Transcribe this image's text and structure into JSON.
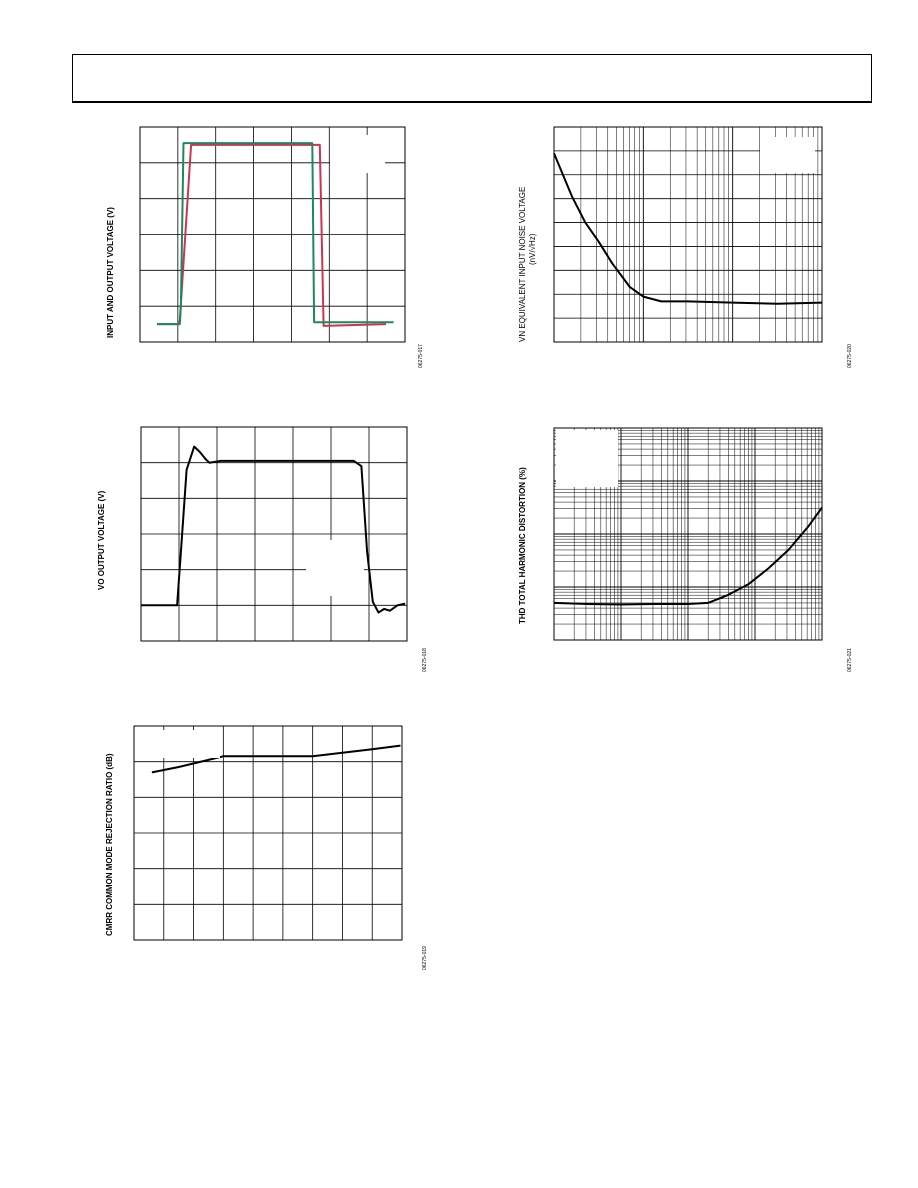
{
  "page": {
    "header_text": ""
  },
  "chart_data": [
    {
      "id": "fig17",
      "type": "line",
      "ylabel": "INPUT AND OUTPUT VOLTAGE (V)",
      "figure_id": "06275-017",
      "grid": true,
      "xgrid": 7,
      "ygrid": 6,
      "xlim": [
        0,
        7
      ],
      "ylim": [
        0,
        6
      ],
      "series": [
        {
          "color": "#cc3355",
          "x": [
            0.45,
            1.0,
            1.05,
            1.35,
            4.5,
            4.75,
            4.85,
            6.5
          ],
          "y": [
            0.5,
            0.5,
            0.6,
            5.5,
            5.5,
            5.5,
            0.45,
            0.5
          ]
        },
        {
          "color": "#1a8a5a",
          "x": [
            0.45,
            1.05,
            1.08,
            1.15,
            4.3,
            4.55,
            4.6,
            6.7
          ],
          "y": [
            0.5,
            0.5,
            1.0,
            5.55,
            5.55,
            5.55,
            0.55,
            0.55
          ]
        }
      ]
    },
    {
      "id": "fig20",
      "type": "line",
      "ylabel": "VN EQUIVALENT INPUT NOISE VOLTAGE",
      "ylabel2": "(nV/√Hz)",
      "figure_id": "06275-020",
      "grid": true,
      "xscale": "log",
      "xdecades": 3,
      "ygrid": 9,
      "xlim": [
        0,
        3
      ],
      "ylim": [
        0,
        9
      ],
      "series": [
        {
          "color": "#000000",
          "x": [
            0,
            0.1,
            0.2,
            0.35,
            0.5,
            0.65,
            0.75,
            0.85,
            1.0,
            1.2,
            1.5,
            2.0,
            2.5,
            3.0
          ],
          "y": [
            7.9,
            7.0,
            6.1,
            5.0,
            4.2,
            3.3,
            2.8,
            2.3,
            1.9,
            1.7,
            1.7,
            1.65,
            1.6,
            1.65
          ]
        }
      ]
    },
    {
      "id": "fig18",
      "type": "line",
      "ylabel": "VO OUTPUT VOLTAGE (V)",
      "figure_id": "06275-018",
      "grid": true,
      "xgrid": 7,
      "ygrid": 6,
      "xlim": [
        0,
        7
      ],
      "ylim": [
        0,
        6
      ],
      "series": [
        {
          "color": "#000000",
          "x": [
            0,
            0.95,
            1.05,
            1.2,
            1.4,
            1.55,
            1.7,
            1.8,
            2.1,
            5.6,
            5.8,
            5.95,
            6.1,
            6.25,
            6.4,
            6.55,
            6.75,
            6.95
          ],
          "y": [
            1.0,
            1.0,
            2.5,
            4.8,
            5.45,
            5.3,
            5.1,
            5.0,
            5.05,
            5.05,
            4.9,
            2.5,
            1.1,
            0.8,
            0.9,
            0.85,
            1.0,
            1.05
          ]
        }
      ]
    },
    {
      "id": "fig21",
      "type": "line",
      "ylabel": "THD TOTAL HARMONIC DISTORTION (%)",
      "figure_id": "06275-021",
      "grid": true,
      "xscale": "log",
      "yscale": "log",
      "xdecades": 4,
      "ydecades": 4,
      "xlim": [
        0,
        4
      ],
      "ylim": [
        0,
        4
      ],
      "series": [
        {
          "color": "#000000",
          "x": [
            0,
            0.5,
            1.0,
            1.5,
            2.0,
            2.3,
            2.6,
            2.9,
            3.2,
            3.5,
            3.8,
            4.0
          ],
          "y": [
            0.7,
            0.68,
            0.67,
            0.68,
            0.68,
            0.7,
            0.85,
            1.05,
            1.35,
            1.7,
            2.15,
            2.5
          ]
        }
      ]
    },
    {
      "id": "fig19",
      "type": "line",
      "ylabel": "CMRR COMMON MODE REJECTION RATIO (dB)",
      "figure_id": "06275-019",
      "grid": true,
      "xgrid": 9,
      "ygrid": 6,
      "xlim": [
        0,
        9
      ],
      "ylim": [
        0,
        6
      ],
      "series": [
        {
          "color": "#000000",
          "x": [
            0.6,
            1.5,
            2.5,
            3.0,
            4.0,
            5.0,
            6.0,
            7.0,
            8.0,
            8.95
          ],
          "y": [
            4.7,
            4.85,
            5.05,
            5.15,
            5.15,
            5.15,
            5.15,
            5.25,
            5.35,
            5.45
          ]
        }
      ]
    }
  ]
}
